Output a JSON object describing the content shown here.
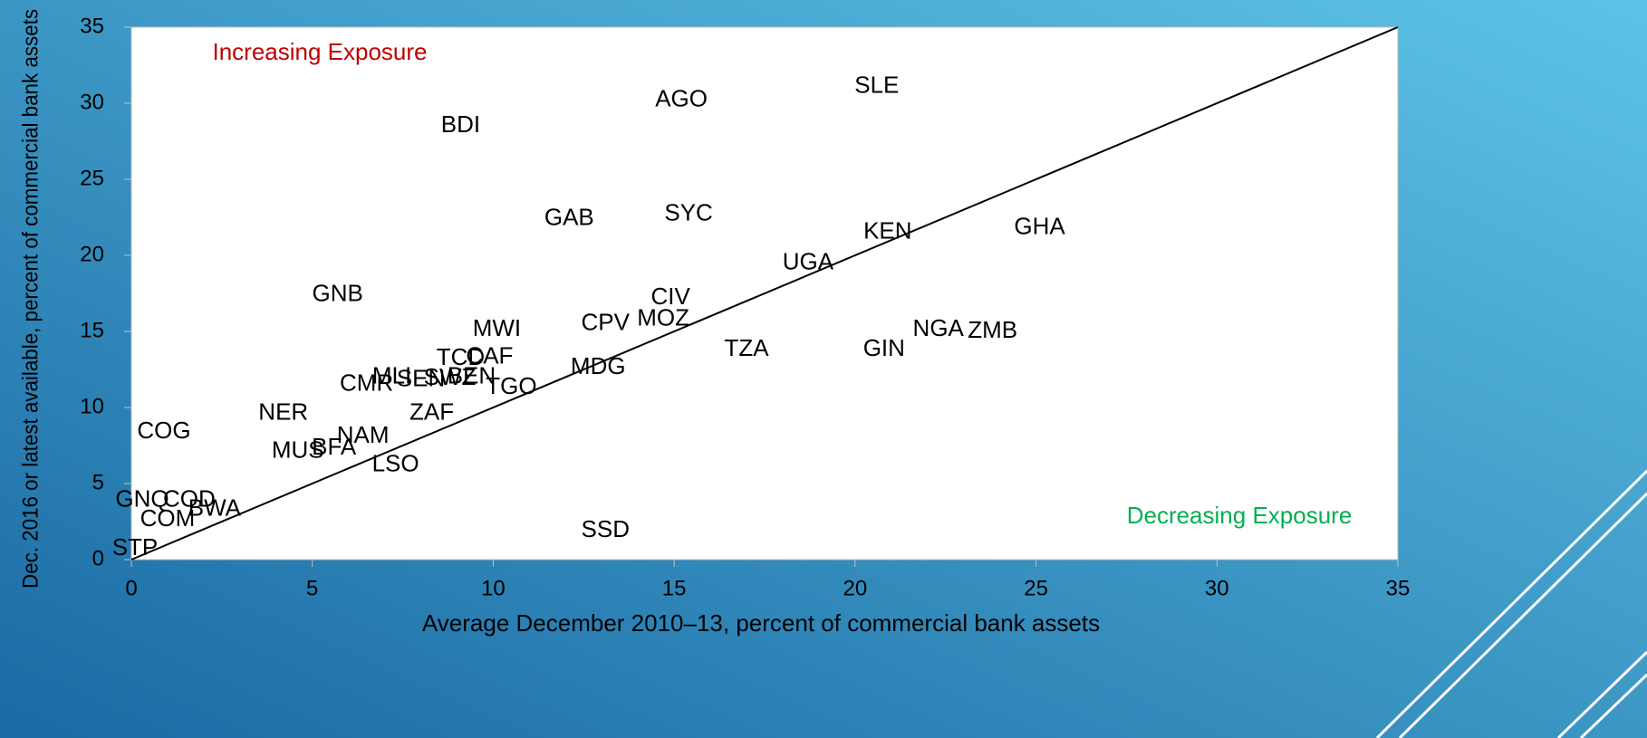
{
  "chart_data": {
    "type": "scatter",
    "xlabel": "Average December 2010–13, percent of commercial bank assets",
    "ylabel": "Dec. 2016 or latest available, percent of commercial bank assets",
    "annotations": [
      {
        "text": "Increasing Exposure",
        "color": "#c00000"
      },
      {
        "text": "Decreasing Exposure",
        "color": "#00b050"
      }
    ],
    "xlim": [
      0,
      35
    ],
    "ylim": [
      0,
      35
    ],
    "xticks": [
      0,
      5,
      10,
      15,
      20,
      25,
      30,
      35
    ],
    "yticks": [
      0,
      5,
      10,
      15,
      20,
      25,
      30,
      35
    ],
    "grid": false,
    "diagonal": true,
    "series": [
      {
        "color": "#000000",
        "labels": [
          "SLE",
          "AGO",
          "BDI",
          "GAB",
          "SYC",
          "KEN",
          "GHA",
          "UGA",
          "GNB",
          "CIV",
          "MOZ",
          "CPV",
          "MWI",
          "NGA",
          "ZMB",
          "TZA",
          "GIN",
          "CAF",
          "TCD",
          "MDG",
          "CMR",
          "MLI",
          "SEN",
          "SWZ",
          "BEN",
          "TGO",
          "NER",
          "ZAF",
          "COG",
          "NAM",
          "MUS",
          "BFA",
          "LSO",
          "GNQ",
          "COD",
          "BWA",
          "COM",
          "STP",
          "SSD"
        ],
        "x": [
          20.6,
          15.2,
          9.1,
          12.1,
          15.4,
          20.9,
          25.1,
          18.7,
          5.7,
          14.9,
          14.7,
          13.1,
          10.1,
          22.3,
          23.8,
          17.0,
          20.8,
          9.9,
          9.1,
          12.9,
          6.5,
          7.2,
          8.0,
          8.8,
          9.4,
          10.5,
          4.2,
          8.3,
          0.9,
          6.4,
          4.6,
          5.6,
          7.3,
          0.3,
          1.6,
          2.3,
          1.0,
          0.1,
          13.1
        ],
        "values": [
          31.1,
          30.2,
          28.5,
          22.4,
          22.7,
          21.5,
          21.8,
          19.5,
          17.4,
          17.2,
          15.8,
          15.5,
          15.1,
          15.1,
          15.0,
          13.8,
          13.8,
          13.3,
          13.2,
          12.6,
          11.5,
          12.0,
          11.8,
          11.9,
          12.0,
          11.3,
          9.6,
          9.6,
          8.4,
          8.1,
          7.1,
          7.3,
          6.2,
          3.9,
          3.9,
          3.3,
          2.6,
          0.7,
          1.9
        ]
      }
    ]
  }
}
